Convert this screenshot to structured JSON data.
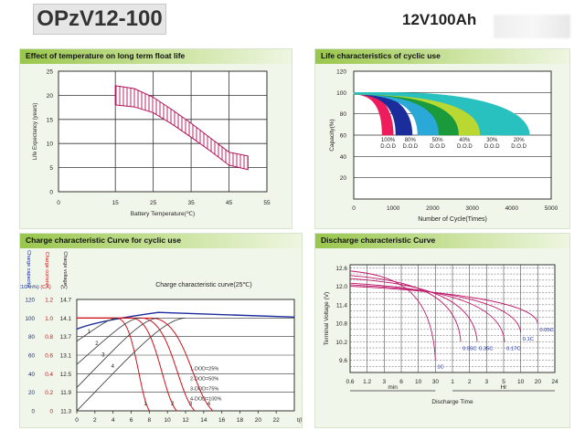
{
  "header": {
    "model": "OPzV12-100",
    "rating": "12V100Ah"
  },
  "chart_data": [
    {
      "type": "area",
      "title": "Effect of temperature on long term float life",
      "xlabel": "Battery Temperature(℃)",
      "ylabel": "Life Expectancy (years)",
      "xlim": [
        0,
        55
      ],
      "ylim": [
        0,
        25
      ],
      "xticks": [
        0,
        15,
        25,
        35,
        45,
        55
      ],
      "yticks": [
        0,
        5,
        10,
        15,
        20,
        25
      ],
      "grid": true,
      "band": {
        "x": [
          15,
          20,
          25,
          30,
          35,
          40,
          45,
          50
        ],
        "upper": [
          22,
          21.4,
          19.6,
          17,
          14.2,
          11.2,
          8.2,
          7.4
        ],
        "lower": [
          18,
          17.6,
          16.4,
          14,
          11.3,
          8.5,
          5.5,
          4.6
        ]
      }
    },
    {
      "type": "area",
      "title": "Life characteristics of cyclic use",
      "xlabel": "Number of Cycle(Times)",
      "ylabel": "Capacity(%)",
      "xlim": [
        0,
        5000
      ],
      "ylim": [
        0,
        120
      ],
      "xticks": [
        0,
        1000,
        2000,
        3000,
        4000,
        5000
      ],
      "yticks": [
        20,
        40,
        60,
        80,
        100,
        120
      ],
      "series": [
        {
          "name": "100% D.O.D",
          "end": 1000,
          "color": "#ee1c5c"
        },
        {
          "name": "80% D.O.D",
          "end": 1480,
          "color": "#1a2d9a"
        },
        {
          "name": "50% D.O.D",
          "end": 2250,
          "color": "#2aa8d8"
        },
        {
          "name": "40% D.O.D",
          "end": 3000,
          "color": "#1a9a3a"
        },
        {
          "name": "30% D.O.D",
          "end": 3700,
          "color": "#b9d832"
        },
        {
          "name": "20% D.O.D",
          "end": 4450,
          "color": "#29c0c0"
        }
      ],
      "labels": [
        {
          "pct": "100%",
          "dod": "D.O.D"
        },
        {
          "pct": "80%",
          "dod": "D.O.D"
        },
        {
          "pct": "50%",
          "dod": "D.O.D"
        },
        {
          "pct": "40%",
          "dod": "D.O.D"
        },
        {
          "pct": "30%",
          "dod": "D.O.D"
        },
        {
          "pct": "20%",
          "dod": "D.O.D"
        }
      ]
    },
    {
      "type": "line",
      "title": "Charge characteristic Curve for cyclic use",
      "subtitle": "Charge characteristic curve(25℃)",
      "x_unit": "t(h)",
      "xlim": [
        0,
        24
      ],
      "xticks": [
        0,
        2,
        4,
        6,
        8,
        10,
        12,
        14,
        16,
        18,
        20,
        22
      ],
      "left_axis_1": {
        "label": "Charge capacity",
        "unit": "(C10Ah%)",
        "ticks": [
          "0",
          "20",
          "40",
          "60",
          "80",
          "100",
          "120"
        ]
      },
      "left_axis_2": {
        "label": "Charge current",
        "unit": "(CA)",
        "ticks": [
          "0",
          "0.2",
          "0.4",
          "0.6",
          "0.8",
          "1.0",
          "1.2"
        ]
      },
      "left_axis_3": {
        "label": "Charge voltage",
        "unit": "(V)",
        "ticks": [
          "11.3",
          "11.9",
          "12.5",
          "13.1",
          "13.7",
          "14.1",
          "14.7"
        ]
      },
      "legend": [
        "1-DOD=25%",
        "2-DOD=50%",
        "3-DOD=75%",
        "4-DOD=100%"
      ],
      "curve_labels": [
        "1",
        "2",
        "3",
        "4"
      ],
      "current_end": [
        8,
        11,
        13,
        15
      ],
      "capacity_full": [
        4.5,
        7,
        9,
        12
      ],
      "capacity_start": [
        75,
        50,
        25,
        0
      ]
    },
    {
      "type": "line",
      "title": "Discharge characteristic Curve",
      "xlabel": "Discharge Time",
      "ylabel": "Terminal Voltage (V)",
      "ylim": [
        9.2,
        12.7
      ],
      "yticks": [
        9.6,
        10.2,
        10.8,
        11.4,
        12.0,
        12.6
      ],
      "xticks": [
        "0.6",
        "1.2",
        "3",
        "6",
        "10",
        "30",
        "1",
        "2",
        "3",
        "5",
        "10",
        "20",
        "24"
      ],
      "x_groups": [
        "min",
        "Hr"
      ],
      "series": [
        {
          "name": "1C",
          "end_time_h": 0.5,
          "end_v": 9.6
        },
        {
          "name": "0.55C",
          "end_time_h": 1.4,
          "end_v": 10.2
        },
        {
          "name": "0.35C",
          "end_time_h": 2.4,
          "end_v": 10.2
        },
        {
          "name": "0.17C",
          "end_time_h": 5.2,
          "end_v": 10.2
        },
        {
          "name": "0.1C",
          "end_time_h": 10,
          "end_v": 10.5
        },
        {
          "name": "0.05C",
          "end_time_h": 20,
          "end_v": 10.8
        }
      ]
    }
  ]
}
